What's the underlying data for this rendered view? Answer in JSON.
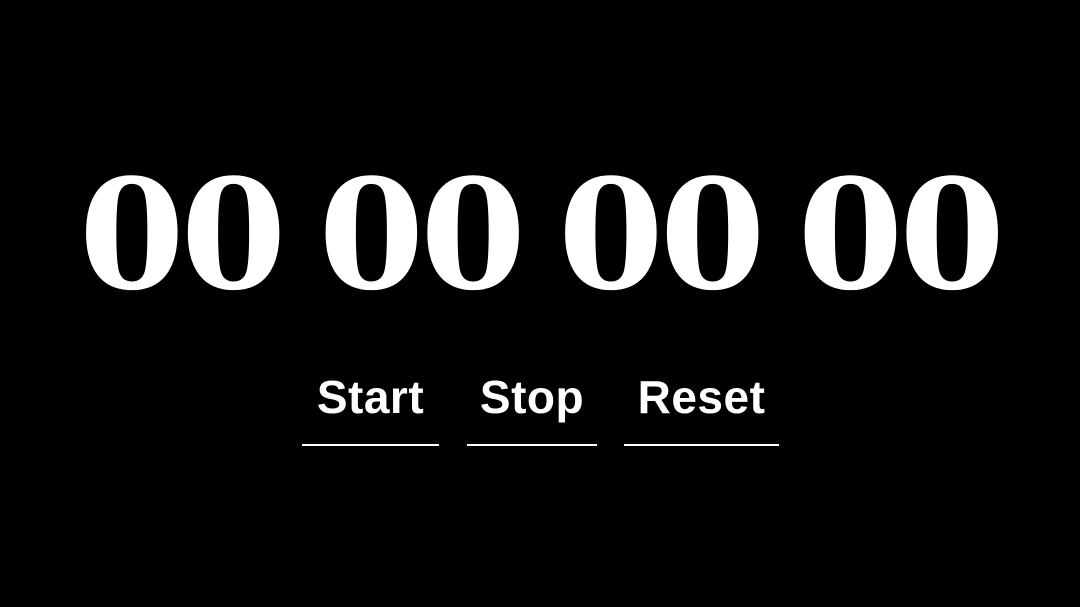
{
  "timer": {
    "hours": "00",
    "minutes": "00",
    "seconds": "00",
    "centiseconds": "00"
  },
  "controls": {
    "start_label": "Start",
    "stop_label": "Stop",
    "reset_label": "Reset"
  },
  "colors": {
    "background": "#000000",
    "text": "#ffffff"
  }
}
